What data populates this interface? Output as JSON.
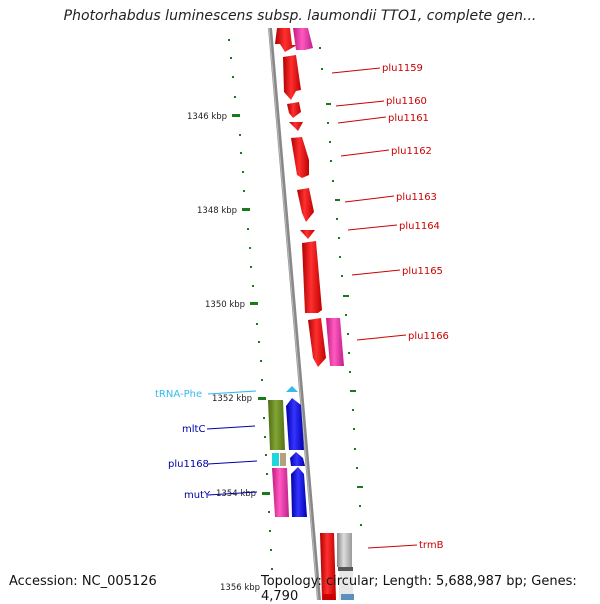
{
  "title": "Photorhabdus luminescens subsp. laumondii TTO1, complete gen...",
  "accession": "Accession: NC_005126",
  "summary": "Topology: circular; Length: 5,688,987 bp; Genes: 4,790",
  "ticks": [
    "1346 kbp",
    "1348 kbp",
    "1350 kbp",
    "1352 kbp",
    "1354 kbp",
    "1356 kbp"
  ],
  "right_genes": [
    "plu1159",
    "plu1160",
    "plu1161",
    "plu1162",
    "plu1163",
    "plu1164",
    "plu1165",
    "plu1166",
    "trmB"
  ],
  "left_genes": [
    "tRNA-Phe",
    "mltC",
    "plu1168",
    "mutY"
  ],
  "colors": {
    "gene_red": "#ff1a1a",
    "gene_pink": "#ee3aa8",
    "gene_blue": "#1212ee",
    "gene_olive": "#6b8a22",
    "gene_cyan": "#22d4dd",
    "gene_tan": "#b5a27a",
    "gene_gray": "#bbbbbb",
    "trna_color": "#33bbee",
    "right_label": "#cc0000",
    "left_label": "#0000aa",
    "axis_dots": "#1a7a1a"
  }
}
